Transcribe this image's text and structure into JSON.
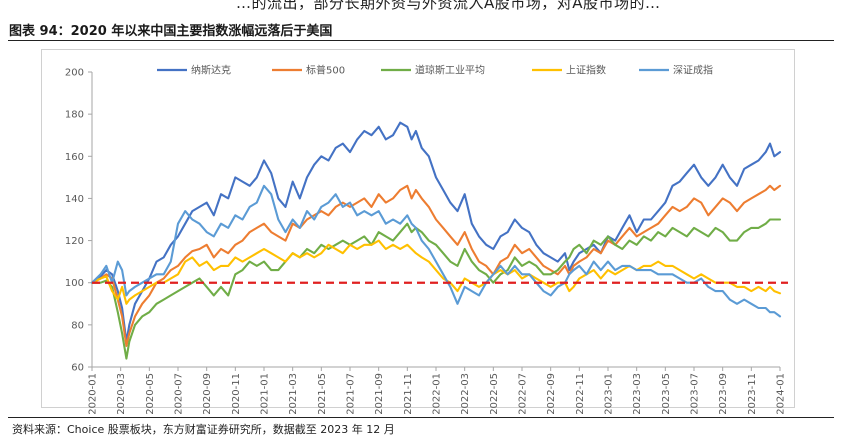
{
  "top_text": "…的流出，部分长期外资与外资流入A股市场，对A股市场的…",
  "figure_title": "图表 94：2020 年以来中国主要指数涨幅远落后于美国",
  "source": "资料来源：Choice 股票板块，东方财富证券研究所，数据截至 2023 年 12 月",
  "chart_data": {
    "type": "line",
    "title": "",
    "xlabel": "",
    "ylabel": "",
    "ylim": [
      60,
      200
    ],
    "yticks": [
      60,
      80,
      100,
      120,
      140,
      160,
      180,
      200
    ],
    "xlim": [
      0,
      48
    ],
    "x_tick_labels": [
      "2020-01",
      "2020-03",
      "2020-05",
      "2020-07",
      "2020-09",
      "2020-11",
      "2021-01",
      "2021-03",
      "2021-05",
      "2021-07",
      "2021-09",
      "2021-11",
      "2022-01",
      "2022-03",
      "2022-05",
      "2022-07",
      "2022-09",
      "2022-11",
      "2023-01",
      "2023-03",
      "2023-05",
      "2023-07",
      "2023-09",
      "2023-11",
      "2024-01"
    ],
    "x_tick_positions": [
      0,
      2,
      4,
      6,
      8,
      10,
      12,
      14,
      16,
      18,
      20,
      22,
      24,
      26,
      28,
      30,
      32,
      34,
      36,
      38,
      40,
      42,
      44,
      46,
      48
    ],
    "reference_line": {
      "value": 100,
      "color": "#e02020",
      "style": "dashed"
    },
    "grid": false,
    "legend_position": "top",
    "series": [
      {
        "name": "纳斯达克",
        "color": "#4472c4",
        "x": [
          0,
          0.6,
          1,
          1.4,
          1.8,
          2.1,
          2.4,
          2.6,
          3,
          3.5,
          4,
          4.5,
          5,
          5.5,
          6,
          6.5,
          7,
          7.5,
          8,
          8.5,
          9,
          9.5,
          10,
          10.5,
          11,
          11.5,
          12,
          12.5,
          13,
          13.5,
          14,
          14.5,
          15,
          15.5,
          16,
          16.5,
          17,
          17.5,
          18,
          18.5,
          19,
          19.5,
          20,
          20.5,
          21,
          21.5,
          22,
          22.3,
          22.6,
          23,
          23.5,
          24,
          24.5,
          25,
          25.5,
          26,
          26.5,
          27,
          27.5,
          28,
          28.5,
          29,
          29.5,
          30,
          30.5,
          31,
          31.5,
          32,
          32.5,
          33,
          33.3,
          33.6,
          34,
          34.5,
          35,
          35.5,
          36,
          36.5,
          37,
          37.5,
          38,
          38.5,
          39,
          39.5,
          40,
          40.5,
          41,
          41.5,
          42,
          42.5,
          43,
          43.5,
          44,
          44.5,
          45,
          45.5,
          46,
          46.5,
          47,
          47.3,
          47.6,
          48
        ],
        "y": [
          100,
          103,
          106,
          104,
          96,
          88,
          72,
          80,
          90,
          96,
          102,
          110,
          112,
          118,
          122,
          128,
          134,
          136,
          138,
          132,
          142,
          140,
          150,
          148,
          146,
          150,
          158,
          152,
          140,
          136,
          148,
          140,
          150,
          156,
          160,
          158,
          164,
          166,
          162,
          168,
          172,
          170,
          174,
          168,
          170,
          176,
          174,
          168,
          172,
          164,
          160,
          150,
          144,
          138,
          134,
          142,
          128,
          122,
          118,
          116,
          122,
          124,
          130,
          126,
          124,
          118,
          114,
          112,
          110,
          114,
          106,
          110,
          114,
          116,
          118,
          114,
          122,
          120,
          126,
          132,
          124,
          130,
          130,
          134,
          138,
          146,
          148,
          152,
          156,
          150,
          146,
          150,
          156,
          150,
          146,
          154,
          156,
          158,
          162,
          166,
          160,
          162
        ]
      },
      {
        "name": "标普500",
        "color": "#ed7d31",
        "x": [
          0,
          0.6,
          1,
          1.4,
          1.8,
          2.1,
          2.4,
          2.6,
          3,
          3.5,
          4,
          4.5,
          5,
          5.5,
          6,
          6.5,
          7,
          7.5,
          8,
          8.5,
          9,
          9.5,
          10,
          10.5,
          11,
          11.5,
          12,
          12.5,
          13,
          13.5,
          14,
          14.5,
          15,
          15.5,
          16,
          16.5,
          17,
          17.5,
          18,
          18.5,
          19,
          19.5,
          20,
          20.5,
          21,
          21.5,
          22,
          22.3,
          22.6,
          23,
          23.5,
          24,
          24.5,
          25,
          25.5,
          26,
          26.5,
          27,
          27.5,
          28,
          28.5,
          29,
          29.5,
          30,
          30.5,
          31,
          31.5,
          32,
          32.5,
          33,
          33.3,
          33.6,
          34,
          34.5,
          35,
          35.5,
          36,
          36.5,
          37,
          37.5,
          38,
          38.5,
          39,
          39.5,
          40,
          40.5,
          41,
          41.5,
          42,
          42.5,
          43,
          43.5,
          44,
          44.5,
          45,
          45.5,
          46,
          46.5,
          47,
          47.3,
          47.6,
          48
        ],
        "y": [
          100,
          102,
          104,
          102,
          92,
          84,
          70,
          76,
          84,
          90,
          94,
          100,
          102,
          106,
          108,
          112,
          115,
          116,
          118,
          112,
          116,
          114,
          118,
          120,
          124,
          126,
          128,
          124,
          122,
          120,
          128,
          126,
          130,
          132,
          134,
          132,
          136,
          138,
          136,
          138,
          140,
          136,
          142,
          138,
          140,
          144,
          146,
          140,
          144,
          140,
          136,
          130,
          126,
          122,
          118,
          124,
          116,
          110,
          108,
          104,
          110,
          112,
          118,
          114,
          116,
          112,
          108,
          106,
          104,
          108,
          104,
          108,
          110,
          112,
          116,
          114,
          120,
          118,
          122,
          126,
          122,
          124,
          126,
          128,
          132,
          136,
          134,
          136,
          140,
          138,
          132,
          136,
          140,
          138,
          134,
          138,
          140,
          142,
          144,
          146,
          144,
          146
        ]
      },
      {
        "name": "道琼斯工业平均",
        "color": "#70ad47",
        "x": [
          0,
          0.6,
          1,
          1.4,
          1.8,
          2.1,
          2.4,
          2.6,
          3,
          3.5,
          4,
          4.5,
          5,
          5.5,
          6,
          6.5,
          7,
          7.5,
          8,
          8.5,
          9,
          9.5,
          10,
          10.5,
          11,
          11.5,
          12,
          12.5,
          13,
          13.5,
          14,
          14.5,
          15,
          15.5,
          16,
          16.5,
          17,
          17.5,
          18,
          18.5,
          19,
          19.5,
          20,
          20.5,
          21,
          21.5,
          22,
          22.3,
          22.6,
          23,
          23.5,
          24,
          24.5,
          25,
          25.5,
          26,
          26.5,
          27,
          27.5,
          28,
          28.5,
          29,
          29.5,
          30,
          30.5,
          31,
          31.5,
          32,
          32.5,
          33,
          33.3,
          33.6,
          34,
          34.5,
          35,
          35.5,
          36,
          36.5,
          37,
          37.5,
          38,
          38.5,
          39,
          39.5,
          40,
          40.5,
          41,
          41.5,
          42,
          42.5,
          43,
          43.5,
          44,
          44.5,
          45,
          45.5,
          46,
          46.5,
          47,
          47.3,
          47.6,
          48
        ],
        "y": [
          100,
          100,
          101,
          98,
          86,
          76,
          64,
          72,
          80,
          84,
          86,
          90,
          92,
          94,
          96,
          98,
          100,
          102,
          98,
          94,
          98,
          94,
          104,
          106,
          110,
          108,
          110,
          106,
          106,
          110,
          114,
          112,
          116,
          114,
          118,
          116,
          118,
          120,
          118,
          120,
          122,
          118,
          124,
          122,
          120,
          124,
          128,
          124,
          126,
          124,
          120,
          118,
          114,
          110,
          108,
          116,
          110,
          106,
          104,
          100,
          104,
          106,
          112,
          108,
          110,
          108,
          104,
          104,
          106,
          110,
          112,
          116,
          118,
          114,
          120,
          118,
          122,
          118,
          116,
          120,
          118,
          122,
          120,
          124,
          122,
          126,
          124,
          122,
          126,
          124,
          122,
          126,
          124,
          120,
          120,
          124,
          126,
          126,
          128,
          130,
          130,
          130
        ]
      },
      {
        "name": "上证指数",
        "color": "#ffc000",
        "x": [
          0,
          0.6,
          1,
          1.4,
          1.8,
          2.1,
          2.4,
          2.6,
          3,
          3.5,
          4,
          4.5,
          5,
          5.5,
          6,
          6.5,
          7,
          7.5,
          8,
          8.5,
          9,
          9.5,
          10,
          10.5,
          11,
          11.5,
          12,
          12.5,
          13,
          13.5,
          14,
          14.5,
          15,
          15.5,
          16,
          16.5,
          17,
          17.5,
          18,
          18.5,
          19,
          19.5,
          20,
          20.5,
          21,
          21.5,
          22,
          22.3,
          22.6,
          23,
          23.5,
          24,
          24.5,
          25,
          25.5,
          26,
          26.5,
          27,
          27.5,
          28,
          28.5,
          29,
          29.5,
          30,
          30.5,
          31,
          31.5,
          32,
          32.5,
          33,
          33.3,
          33.6,
          34,
          34.5,
          35,
          35.5,
          36,
          36.5,
          37,
          37.5,
          38,
          38.5,
          39,
          39.5,
          40,
          40.5,
          41,
          41.5,
          42,
          42.5,
          43,
          43.5,
          44,
          44.5,
          45,
          45.5,
          46,
          46.5,
          47,
          47.3,
          47.6,
          48
        ],
        "y": [
          100,
          102,
          103,
          96,
          92,
          98,
          90,
          92,
          94,
          96,
          98,
          100,
          100,
          102,
          104,
          110,
          112,
          108,
          110,
          106,
          108,
          108,
          112,
          110,
          112,
          114,
          116,
          114,
          112,
          110,
          114,
          112,
          114,
          112,
          114,
          118,
          116,
          114,
          118,
          116,
          118,
          118,
          120,
          116,
          118,
          116,
          118,
          116,
          114,
          112,
          110,
          106,
          102,
          100,
          96,
          102,
          100,
          98,
          100,
          104,
          106,
          104,
          106,
          102,
          104,
          102,
          100,
          98,
          100,
          100,
          96,
          98,
          102,
          104,
          106,
          102,
          106,
          104,
          106,
          108,
          106,
          108,
          108,
          110,
          108,
          108,
          106,
          104,
          102,
          104,
          102,
          100,
          100,
          100,
          98,
          98,
          96,
          98,
          96,
          98,
          96,
          95
        ]
      },
      {
        "name": "深证成指",
        "color": "#5b9bd5",
        "x": [
          0,
          0.6,
          1,
          1.4,
          1.8,
          2.1,
          2.4,
          2.6,
          3,
          3.5,
          4,
          4.5,
          5,
          5.5,
          6,
          6.5,
          7,
          7.5,
          8,
          8.5,
          9,
          9.5,
          10,
          10.5,
          11,
          11.5,
          12,
          12.5,
          13,
          13.5,
          14,
          14.5,
          15,
          15.5,
          16,
          16.5,
          17,
          17.5,
          18,
          18.5,
          19,
          19.5,
          20,
          20.5,
          21,
          21.5,
          22,
          22.3,
          22.6,
          23,
          23.5,
          24,
          24.5,
          25,
          25.5,
          26,
          26.5,
          27,
          27.5,
          28,
          28.5,
          29,
          29.5,
          30,
          30.5,
          31,
          31.5,
          32,
          32.5,
          33,
          33.3,
          33.6,
          34,
          34.5,
          35,
          35.5,
          36,
          36.5,
          37,
          37.5,
          38,
          38.5,
          39,
          39.5,
          40,
          40.5,
          41,
          41.5,
          42,
          42.5,
          43,
          43.5,
          44,
          44.5,
          45,
          45.5,
          46,
          46.5,
          47,
          47.3,
          47.6,
          48
        ],
        "y": [
          100,
          104,
          108,
          100,
          110,
          106,
          94,
          96,
          98,
          100,
          102,
          104,
          104,
          110,
          128,
          134,
          130,
          128,
          124,
          122,
          128,
          126,
          132,
          130,
          136,
          138,
          146,
          142,
          130,
          124,
          130,
          126,
          134,
          130,
          136,
          138,
          142,
          136,
          138,
          132,
          134,
          132,
          134,
          128,
          130,
          128,
          132,
          128,
          126,
          120,
          116,
          110,
          104,
          98,
          90,
          98,
          96,
          94,
          100,
          104,
          108,
          104,
          108,
          104,
          104,
          100,
          96,
          94,
          98,
          100,
          104,
          106,
          108,
          104,
          110,
          106,
          110,
          106,
          108,
          108,
          106,
          106,
          106,
          104,
          104,
          104,
          102,
          100,
          100,
          102,
          98,
          96,
          96,
          92,
          90,
          92,
          90,
          88,
          88,
          86,
          86,
          84
        ]
      }
    ]
  }
}
